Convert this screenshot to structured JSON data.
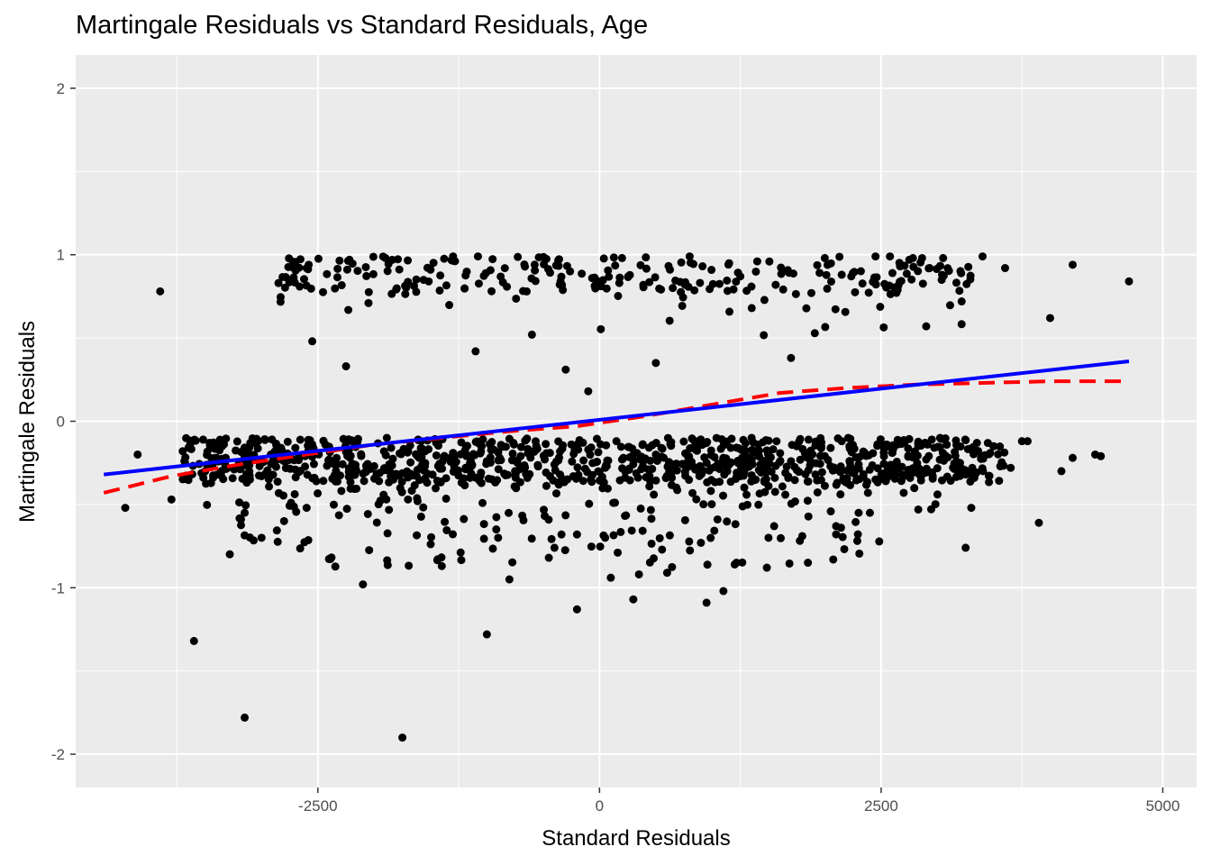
{
  "chart_data": {
    "type": "scatter",
    "title": "Martingale Residuals vs Standard Residuals, Age",
    "xlabel": "Standard Residuals",
    "ylabel": "Martingale Residuals",
    "xlim": [
      -4650,
      5300
    ],
    "ylim": [
      -2.2,
      2.2
    ],
    "x_ticks": [
      -2500,
      0,
      2500,
      5000
    ],
    "x_tick_labels": [
      "-2500",
      "0",
      "2500",
      "5000"
    ],
    "y_ticks": [
      -2,
      -1,
      0,
      1,
      2
    ],
    "y_tick_labels": [
      "-2",
      "-1",
      "0",
      "1",
      "2"
    ],
    "grid": true,
    "colors": {
      "panel": "#ebebeb",
      "grid": "#ffffff",
      "points": "#000000",
      "linear_fit": "#0000ff",
      "smooth_fit": "#ff0000"
    },
    "points": {
      "note_free_sample": true,
      "x": [
        -4210,
        -3900,
        -3800,
        -3600,
        -3150,
        -3000,
        -2850,
        -2600,
        -2550,
        -2250,
        -1900,
        -1750,
        -1500,
        -1300,
        -1100,
        -900,
        -600,
        -450,
        -300,
        -200,
        -100,
        50,
        200,
        350,
        500,
        650,
        800,
        950,
        1100,
        1250,
        1400,
        1550,
        1700,
        1850,
        2000,
        2150,
        2300,
        2450,
        2600,
        2750,
        2900,
        3050,
        3250,
        3400,
        3600,
        3900,
        4000,
        4200,
        4450,
        4700,
        -3150,
        -2800,
        -2600,
        -2100,
        -1700,
        -1400,
        -1000,
        -800,
        -400,
        -200,
        100,
        300,
        600,
        900,
        1200,
        1500,
        1800,
        2100,
        2400,
        2700,
        3000,
        3300,
        -4100,
        -3700,
        -3400,
        -3200,
        -2900,
        -2700,
        -2400,
        -2000,
        -1600,
        -1300,
        -1000,
        -700,
        -400,
        -100,
        200,
        500,
        800,
        1100,
        1400,
        1700,
        2000,
        2300,
        2600,
        2900,
        3200,
        3500,
        3800,
        4200,
        -3500,
        -3300,
        -3000,
        -2700,
        -2350,
        -1950,
        -1550,
        -1150,
        -750,
        -350,
        50,
        450,
        850,
        1250,
        1650,
        2050,
        2450,
        2850,
        3250,
        3650,
        4100,
        -3350,
        -3100,
        -2850,
        -2550,
        -2200,
        -1850,
        -1450,
        -1050,
        -650,
        -250,
        150,
        550,
        950,
        1350,
        1750,
        2150,
        2550,
        2950,
        3350,
        3750,
        4400
      ],
      "y": [
        -0.52,
        0.78,
        -0.47,
        -1.32,
        -1.78,
        -0.7,
        0.83,
        0.92,
        0.48,
        0.33,
        0.98,
        -1.9,
        0.91,
        0.99,
        0.42,
        -0.7,
        0.52,
        -0.82,
        0.31,
        -1.13,
        0.18,
        -0.7,
        0.98,
        -0.92,
        0.35,
        0.8,
        0.99,
        -1.09,
        -1.02,
        0.87,
        0.96,
        -0.63,
        0.38,
        -0.85,
        0.98,
        0.88,
        -0.55,
        0.99,
        0.89,
        0.97,
        0.57,
        0.98,
        -0.76,
        0.99,
        0.92,
        -0.61,
        0.62,
        0.94,
        -0.21,
        0.84,
        -0.55,
        -0.6,
        -0.52,
        -0.98,
        -0.47,
        -0.87,
        -1.28,
        -0.95,
        -0.76,
        -0.68,
        -0.94,
        -1.07,
        -0.91,
        -0.73,
        -0.86,
        -0.7,
        -0.69,
        -0.63,
        -0.55,
        -0.43,
        -0.44,
        -0.52,
        -0.2,
        -0.18,
        -0.22,
        -0.25,
        -0.24,
        -0.16,
        -0.23,
        -0.27,
        -0.22,
        -0.19,
        -0.24,
        -0.21,
        -0.26,
        -0.17,
        -0.23,
        -0.2,
        -0.25,
        -0.22,
        -0.18,
        -0.24,
        -0.21,
        -0.26,
        -0.19,
        -0.23,
        -0.25,
        -0.15,
        -0.12,
        -0.22,
        -0.3,
        -0.28,
        -0.33,
        -0.29,
        -0.35,
        -0.31,
        -0.27,
        -0.34,
        -0.3,
        -0.32,
        -0.28,
        -0.36,
        -0.29,
        -0.33,
        -0.31,
        -0.27,
        -0.35,
        -0.3,
        -0.32,
        -0.28,
        -0.3,
        -0.15,
        -0.13,
        -0.17,
        -0.14,
        -0.12,
        -0.16,
        -0.13,
        -0.15,
        -0.11,
        -0.14,
        -0.12,
        -0.16,
        -0.13,
        -0.1,
        -0.15,
        -0.12,
        -0.14,
        -0.11,
        -0.13,
        -0.12,
        -0.2
      ]
    },
    "series": [
      {
        "type": "line",
        "x": [
          -4400,
          4700
        ],
        "y": [
          -0.32,
          0.36
        ]
      },
      {
        "type": "line",
        "dashed": true,
        "x": [
          -4400,
          -3800,
          -3200,
          -2600,
          -2000,
          -1400,
          -800,
          -200,
          400,
          1000,
          1600,
          2200,
          2800,
          3400,
          4000,
          4700
        ],
        "y": [
          -0.43,
          -0.33,
          -0.26,
          -0.2,
          -0.14,
          -0.1,
          -0.06,
          -0.03,
          0.03,
          0.1,
          0.17,
          0.2,
          0.22,
          0.23,
          0.24,
          0.24
        ]
      }
    ]
  }
}
